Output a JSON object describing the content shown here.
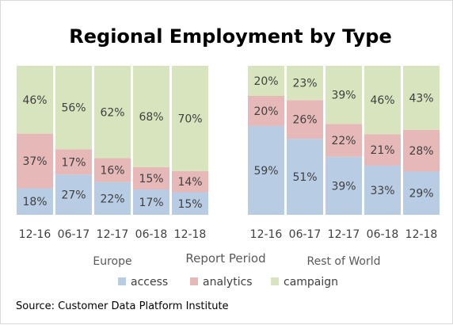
{
  "chart_data": {
    "type": "bar",
    "stacked": true,
    "percent_stacked": true,
    "title": "Regional Employment by Type",
    "xlabel": "Report Period",
    "ylabel": "",
    "ylim": [
      0,
      100
    ],
    "legend_position": "bottom",
    "source": "Source: Customer Data Platform Institute",
    "series": [
      {
        "name": "access",
        "color": "#b8cce4"
      },
      {
        "name": "analytics",
        "color": "#e6b9b8"
      },
      {
        "name": "campaign",
        "color": "#d7e4bd"
      }
    ],
    "groups": [
      {
        "name": "Europe",
        "categories": [
          "12-16",
          "06-17",
          "12-17",
          "06-18",
          "12-18"
        ],
        "values": {
          "access": [
            18,
            27,
            22,
            17,
            15
          ],
          "analytics": [
            37,
            17,
            16,
            15,
            14
          ],
          "campaign": [
            46,
            56,
            62,
            68,
            70
          ]
        }
      },
      {
        "name": "Rest of World",
        "categories": [
          "12-16",
          "06-17",
          "12-17",
          "06-18",
          "12-18"
        ],
        "values": {
          "access": [
            59,
            51,
            39,
            33,
            29
          ],
          "analytics": [
            20,
            26,
            22,
            21,
            28
          ],
          "campaign": [
            20,
            23,
            39,
            46,
            43
          ]
        }
      }
    ]
  }
}
